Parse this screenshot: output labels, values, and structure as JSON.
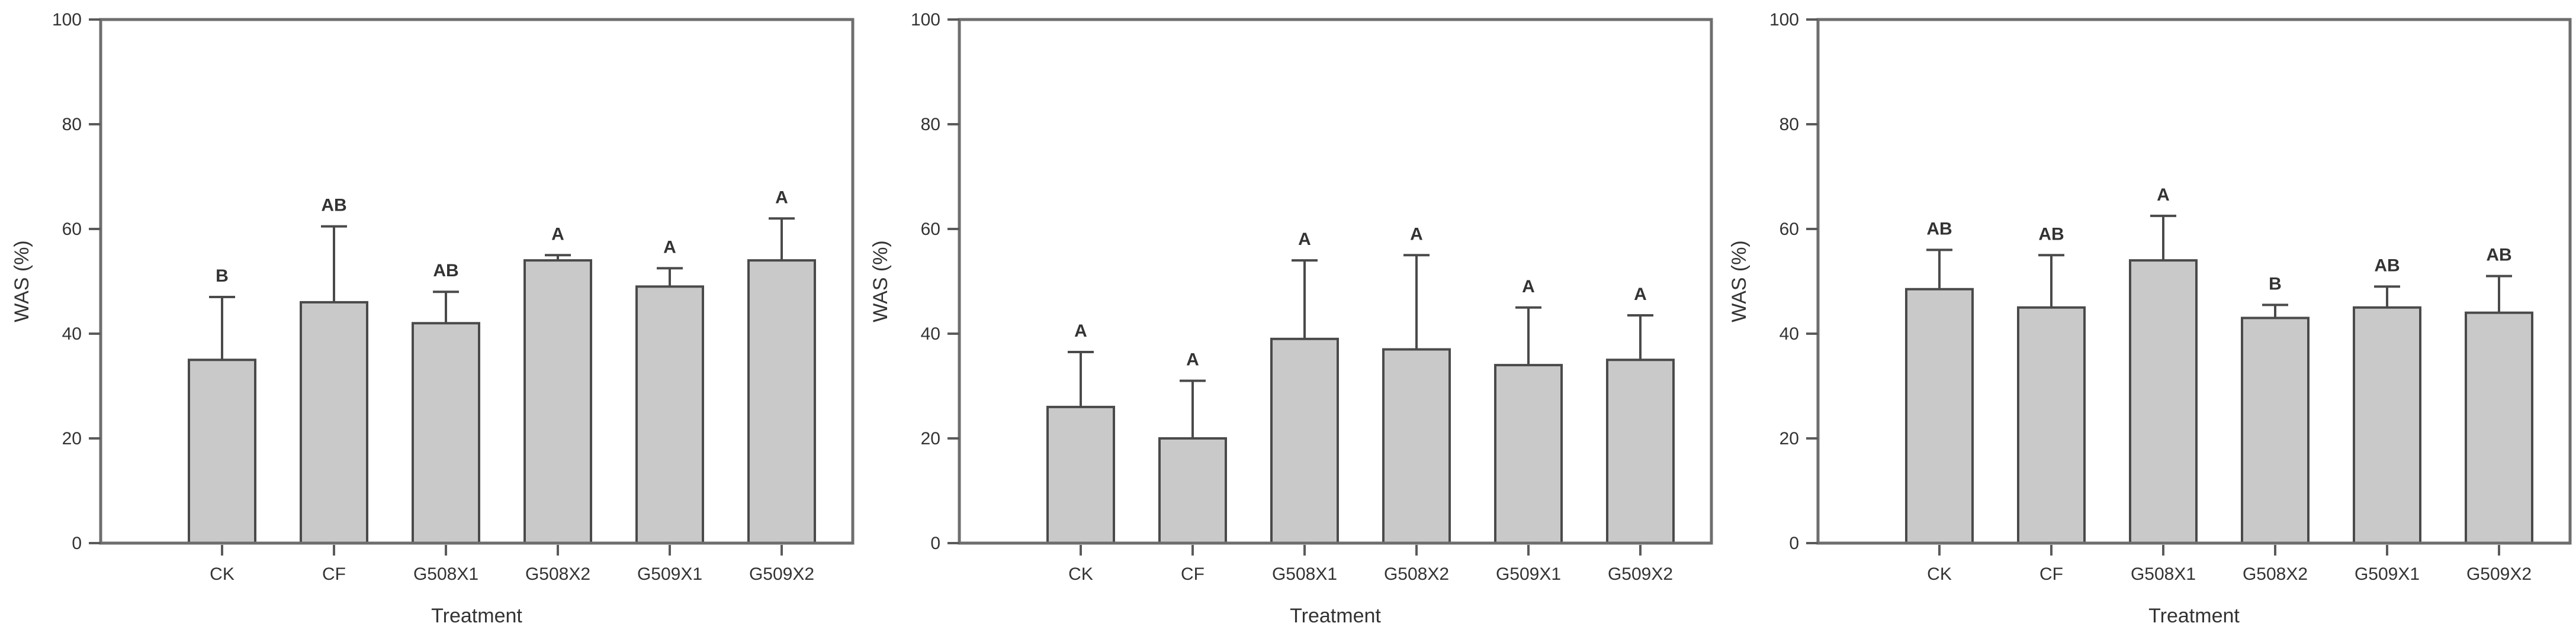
{
  "page": {
    "background": "#ffffff",
    "description": "Three bar-chart panels of WAS (%) by Treatment with error bars and significance letters"
  },
  "colors": {
    "bar_fill": "#c9c9c9",
    "bar_stroke": "#4a4a4a",
    "error_bar": "#4a4a4a",
    "axis_box": "#6e6e6e",
    "tick_mark": "#5a5a5a",
    "text": "#333333"
  },
  "chart_data": [
    {
      "type": "bar",
      "panel": "left",
      "title": "",
      "xlabel": "Treatment",
      "ylabel": "WAS (%)",
      "ylim": [
        0,
        100
      ],
      "yticks": [
        0,
        20,
        40,
        60,
        80,
        100
      ],
      "grid": false,
      "legend": "none",
      "categories": [
        "CK",
        "CF",
        "G508X1",
        "G508X2",
        "G509X1",
        "G509X2"
      ],
      "values": [
        35,
        46,
        42,
        54,
        49,
        54
      ],
      "error_up": [
        12,
        14.5,
        6,
        1,
        3.5,
        8
      ],
      "sig_letters": [
        "B",
        "AB",
        "AB",
        "A",
        "A",
        "A"
      ]
    },
    {
      "type": "bar",
      "panel": "middle",
      "title": "",
      "xlabel": "Treatment",
      "ylabel": "WAS (%)",
      "ylim": [
        0,
        100
      ],
      "yticks": [
        0,
        20,
        40,
        60,
        80,
        100
      ],
      "grid": false,
      "legend": "none",
      "categories": [
        "CK",
        "CF",
        "G508X1",
        "G508X2",
        "G509X1",
        "G509X2"
      ],
      "values": [
        26,
        20,
        39,
        37,
        34,
        35
      ],
      "error_up": [
        10.5,
        11,
        15,
        18,
        11,
        8.5
      ],
      "sig_letters": [
        "A",
        "A",
        "A",
        "A",
        "A",
        "A"
      ]
    },
    {
      "type": "bar",
      "panel": "right",
      "title": "",
      "xlabel": "Treatment",
      "ylabel": "WAS (%)",
      "ylim": [
        0,
        100
      ],
      "yticks": [
        0,
        20,
        40,
        60,
        80,
        100
      ],
      "grid": false,
      "legend": "none",
      "categories": [
        "CK",
        "CF",
        "G508X1",
        "G508X2",
        "G509X1",
        "G509X2"
      ],
      "values": [
        48.5,
        45,
        54,
        43,
        45,
        44
      ],
      "error_up": [
        7.5,
        10,
        8.5,
        2.5,
        4,
        7
      ],
      "sig_letters": [
        "AB",
        "AB",
        "A",
        "B",
        "AB",
        "AB"
      ]
    }
  ]
}
